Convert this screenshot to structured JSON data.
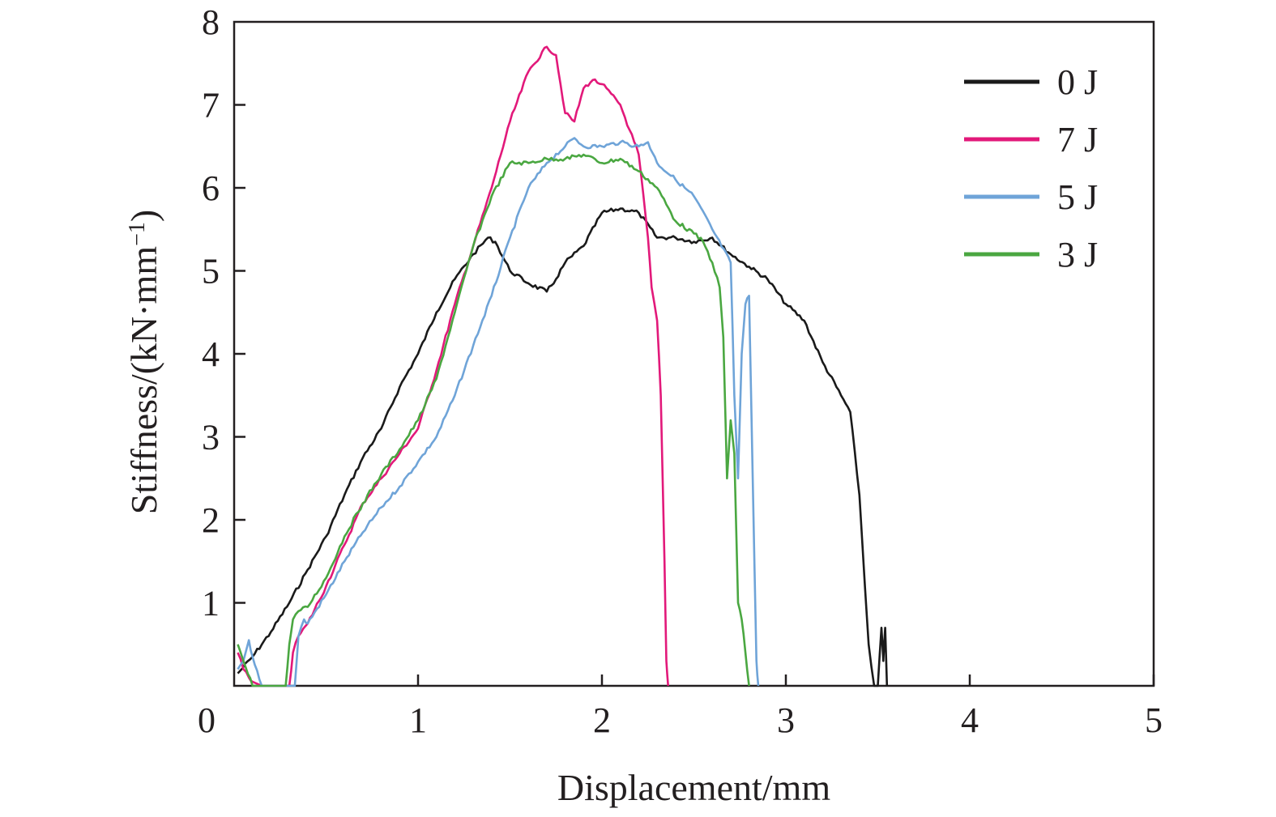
{
  "chart_data": {
    "type": "line",
    "xlabel": "Displacement/mm",
    "ylabel_main": "Stiffness/(kN·mm",
    "ylabel_sup": "−1",
    "ylabel_close": ")",
    "xlim": [
      0,
      5
    ],
    "ylim": [
      0,
      8
    ],
    "xticks": [
      "0",
      "1",
      "2",
      "3",
      "4",
      "5"
    ],
    "yticks": [
      "1",
      "2",
      "3",
      "4",
      "5",
      "6",
      "7",
      "8"
    ],
    "grid": false,
    "legend_position": "top-right",
    "series": [
      {
        "name": "0 J",
        "color": "#1a1a1a",
        "x": [
          0.02,
          0.1,
          0.2,
          0.3,
          0.4,
          0.5,
          0.6,
          0.7,
          0.8,
          0.9,
          1.0,
          1.1,
          1.2,
          1.3,
          1.38,
          1.42,
          1.5,
          1.6,
          1.7,
          1.75,
          1.8,
          1.9,
          2.0,
          2.1,
          2.2,
          2.3,
          2.4,
          2.5,
          2.6,
          2.7,
          2.8,
          2.9,
          3.0,
          3.1,
          3.2,
          3.3,
          3.35,
          3.4,
          3.43,
          3.45,
          3.48,
          3.5,
          3.52,
          3.53,
          3.54,
          3.55
        ],
        "y": [
          0.15,
          0.35,
          0.65,
          1.0,
          1.4,
          1.8,
          2.3,
          2.75,
          3.1,
          3.6,
          4.0,
          4.5,
          4.9,
          5.2,
          5.4,
          5.35,
          5.0,
          4.85,
          4.75,
          4.9,
          5.1,
          5.3,
          5.7,
          5.75,
          5.7,
          5.4,
          5.4,
          5.35,
          5.4,
          5.2,
          5.05,
          4.9,
          4.6,
          4.4,
          3.9,
          3.5,
          3.3,
          2.3,
          1.2,
          0.5,
          0,
          0,
          0.7,
          0.3,
          0.7,
          0
        ]
      },
      {
        "name": "7 J",
        "color": "#e2197a",
        "x": [
          0.02,
          0.05,
          0.08,
          0.1,
          0.15,
          0.2,
          0.25,
          0.3,
          0.32,
          0.35,
          0.4,
          0.5,
          0.6,
          0.7,
          0.8,
          0.9,
          1.0,
          1.1,
          1.2,
          1.3,
          1.4,
          1.5,
          1.6,
          1.7,
          1.75,
          1.8,
          1.85,
          1.9,
          1.95,
          2.0,
          2.1,
          2.15,
          2.2,
          2.25,
          2.27,
          2.3,
          2.32,
          2.34,
          2.35,
          2.36
        ],
        "y": [
          0.4,
          0.2,
          0.1,
          0.05,
          0,
          0,
          0,
          0,
          0.4,
          0.6,
          0.75,
          1.2,
          1.7,
          2.2,
          2.5,
          2.8,
          3.1,
          3.8,
          4.6,
          5.3,
          6.0,
          6.8,
          7.4,
          7.7,
          7.6,
          6.9,
          6.8,
          7.2,
          7.3,
          7.25,
          7.0,
          6.7,
          6.4,
          5.4,
          4.8,
          4.4,
          3.5,
          1.5,
          0.3,
          0
        ]
      },
      {
        "name": "5 J",
        "color": "#6fa4d8",
        "x": [
          0.02,
          0.05,
          0.08,
          0.1,
          0.15,
          0.2,
          0.3,
          0.33,
          0.35,
          0.38,
          0.4,
          0.5,
          0.6,
          0.7,
          0.8,
          0.9,
          1.0,
          1.1,
          1.2,
          1.3,
          1.4,
          1.5,
          1.6,
          1.7,
          1.8,
          1.85,
          1.9,
          2.0,
          2.1,
          2.2,
          2.25,
          2.3,
          2.4,
          2.5,
          2.6,
          2.7,
          2.72,
          2.74,
          2.76,
          2.78,
          2.8,
          2.82,
          2.84,
          2.85
        ],
        "y": [
          0.2,
          0.3,
          0.55,
          0.35,
          0,
          0,
          0,
          0,
          0.6,
          0.8,
          0.75,
          1.1,
          1.5,
          1.85,
          2.15,
          2.4,
          2.7,
          3.0,
          3.5,
          4.1,
          4.7,
          5.4,
          6.0,
          6.3,
          6.5,
          6.6,
          6.5,
          6.5,
          6.55,
          6.5,
          6.55,
          6.3,
          6.1,
          5.9,
          5.5,
          5.1,
          3.5,
          2.5,
          4.0,
          4.6,
          4.7,
          2.5,
          0.3,
          0
        ]
      },
      {
        "name": "3 J",
        "color": "#4aa741",
        "x": [
          0.02,
          0.05,
          0.1,
          0.2,
          0.28,
          0.3,
          0.32,
          0.35,
          0.4,
          0.5,
          0.6,
          0.7,
          0.8,
          0.9,
          1.0,
          1.1,
          1.2,
          1.3,
          1.4,
          1.5,
          1.6,
          1.7,
          1.8,
          1.9,
          2.0,
          2.1,
          2.2,
          2.3,
          2.4,
          2.5,
          2.55,
          2.6,
          2.64,
          2.66,
          2.68,
          2.7,
          2.72,
          2.74,
          2.76,
          2.78,
          2.8
        ],
        "y": [
          0.5,
          0.3,
          0,
          0,
          0,
          0.5,
          0.8,
          0.9,
          0.95,
          1.3,
          1.8,
          2.2,
          2.55,
          2.85,
          3.2,
          3.7,
          4.5,
          5.3,
          5.9,
          6.3,
          6.3,
          6.35,
          6.35,
          6.4,
          6.3,
          6.35,
          6.2,
          6.0,
          5.6,
          5.45,
          5.35,
          5.1,
          4.8,
          4.2,
          2.5,
          3.2,
          2.8,
          1.0,
          0.8,
          0.4,
          0
        ]
      }
    ]
  }
}
